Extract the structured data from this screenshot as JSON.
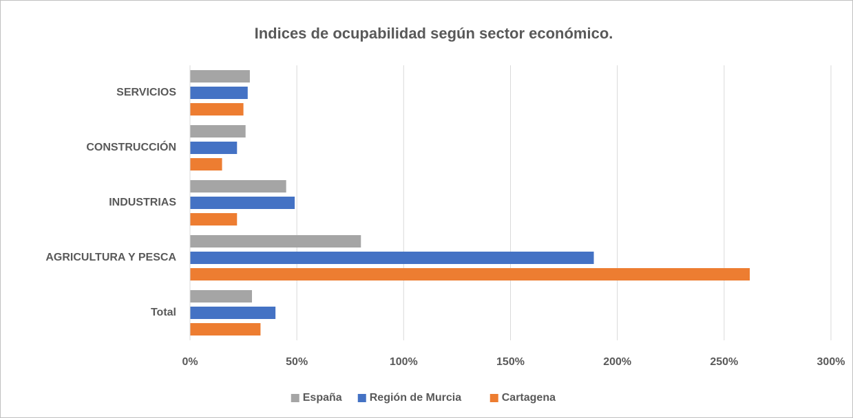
{
  "chart_data": {
    "type": "hbar",
    "title": "Indices de ocupabilidad según sector económico.",
    "categories": [
      "Total",
      "AGRICULTURA Y PESCA",
      "INDUSTRIAS",
      "CONSTRUCCIÓN",
      "SERVICIOS"
    ],
    "series": [
      {
        "name": "España",
        "color": "#a5a5a5",
        "values": [
          29,
          80,
          45,
          26,
          28
        ]
      },
      {
        "name": "Región de Murcia",
        "color": "#4472c4",
        "values": [
          40,
          189,
          49,
          22,
          27
        ]
      },
      {
        "name": "Cartagena",
        "color": "#ed7d31",
        "values": [
          33,
          262,
          22,
          15,
          25
        ]
      }
    ],
    "xlim": [
      0,
      300
    ],
    "xticks": [
      {
        "value": 0,
        "label": "0%"
      },
      {
        "value": 50,
        "label": "50%"
      },
      {
        "value": 100,
        "label": "100%"
      },
      {
        "value": 150,
        "label": "150%"
      },
      {
        "value": 200,
        "label": "200%"
      },
      {
        "value": 250,
        "label": "250%"
      },
      {
        "value": 300,
        "label": "300%"
      }
    ],
    "grid": true,
    "legend": "bottom"
  }
}
